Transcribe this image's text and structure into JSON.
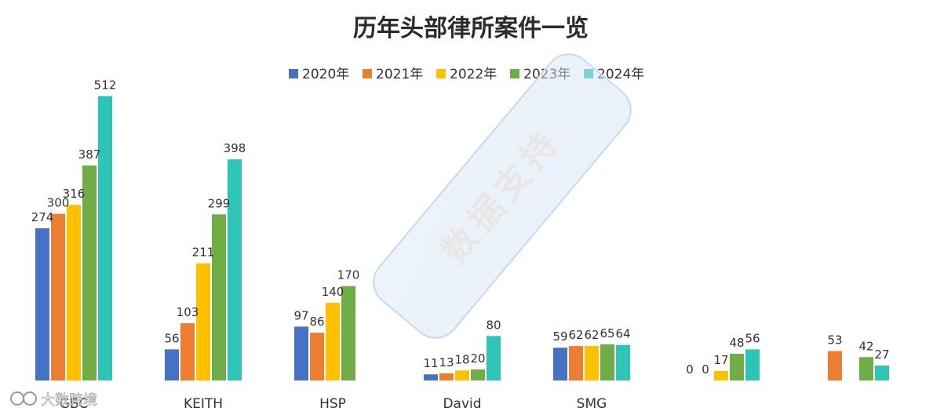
{
  "chart_data": {
    "type": "bar",
    "title": "历年头部律所案件一览",
    "categories": [
      "GBC",
      "KEITH",
      "HSP",
      "David",
      "SMG",
      "",
      ""
    ],
    "series": [
      {
        "name": "2020年",
        "color": "#4472c4",
        "values": [
          274,
          56,
          97,
          11,
          59,
          0,
          null
        ]
      },
      {
        "name": "2021年",
        "color": "#ed7d31",
        "values": [
          300,
          103,
          86,
          13,
          62,
          0,
          53
        ]
      },
      {
        "name": "2022年",
        "color": "#ffc000",
        "values": [
          316,
          211,
          140,
          18,
          62,
          17,
          null
        ]
      },
      {
        "name": "2023年",
        "color": "#70ad47",
        "values": [
          387,
          299,
          170,
          20,
          65,
          48,
          42
        ]
      },
      {
        "name": "2024年",
        "color": "#2ec4b6",
        "values": [
          512,
          398,
          null,
          80,
          64,
          56,
          27
        ]
      }
    ],
    "ylim": [
      0,
      560
    ],
    "grid": false,
    "legend": "top-center"
  },
  "watermark": {
    "stamp_text": "数据支持",
    "corner_text": "大数跨境"
  }
}
